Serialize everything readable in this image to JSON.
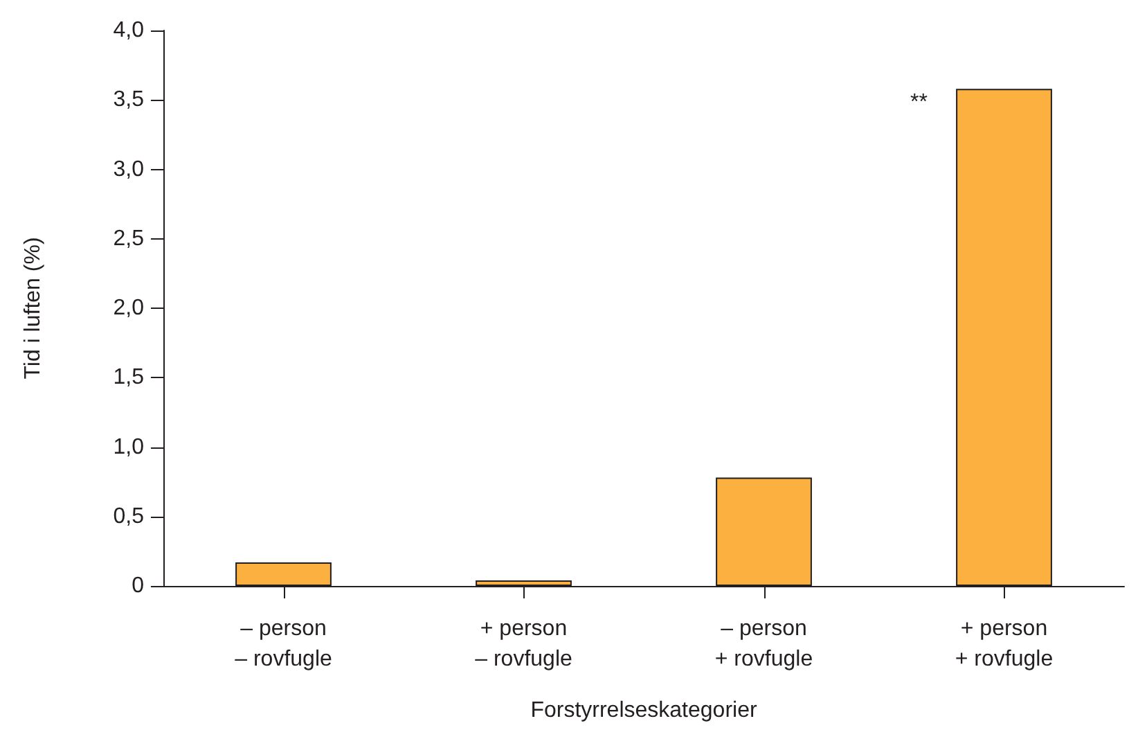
{
  "chart_data": {
    "type": "bar",
    "xlabel": "Forstyrrelseskategorier",
    "ylabel": "Tid i luften (%)",
    "categories": [
      "– person\n– rovfugle",
      "+ person\n– rovfugle",
      "– person\n+ rovfugle",
      "+ person\n+ rovfugle"
    ],
    "values": [
      0.17,
      0.04,
      0.78,
      3.58
    ],
    "color": "#fbb040",
    "ylim": [
      0,
      4
    ],
    "yticks": [
      {
        "value": 0,
        "label": "0"
      },
      {
        "value": 0.5,
        "label": "0,5"
      },
      {
        "value": 1,
        "label": "1,0"
      },
      {
        "value": 1.5,
        "label": "1,5"
      },
      {
        "value": 2,
        "label": "2,0"
      },
      {
        "value": 2.5,
        "label": "2,5"
      },
      {
        "value": 3,
        "label": "3,0"
      },
      {
        "value": 3.5,
        "label": "3,5"
      },
      {
        "value": 4,
        "label": "4,0"
      }
    ],
    "grid": false,
    "annotations": [
      "**"
    ]
  }
}
